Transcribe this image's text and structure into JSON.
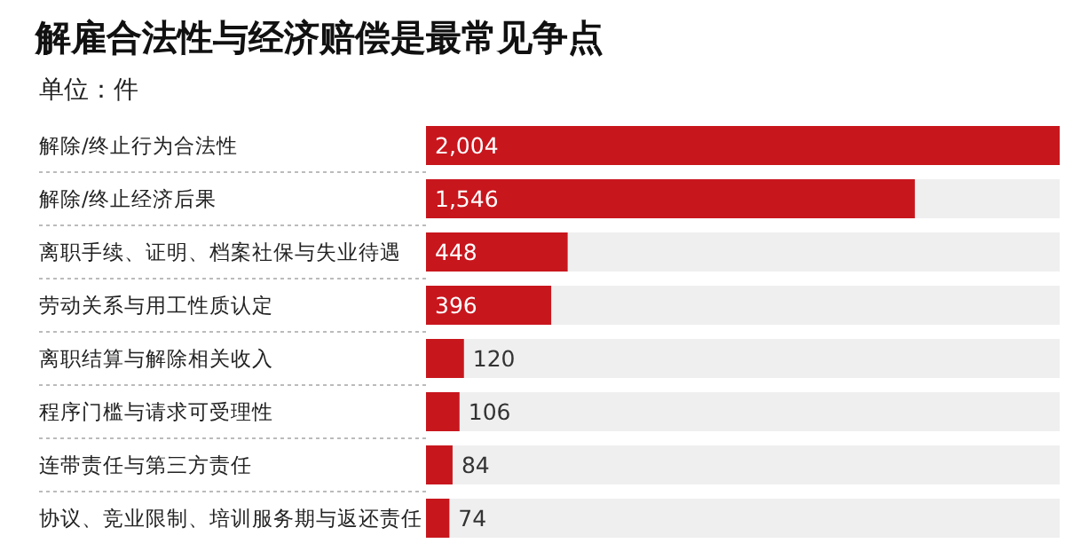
{
  "chart_data": {
    "type": "bar",
    "orientation": "horizontal",
    "title": "解雇合法性与经济赔偿是最常见争点",
    "subtitle": "单位：件",
    "categories": [
      "解除/终止行为合法性",
      "解除/终止经济后果",
      "离职手续、证明、档案社保与失业待遇",
      "劳动关系与用工性质认定",
      "离职结算与解除相关收入",
      "程序门槛与请求可受理性",
      "连带责任与第三方责任",
      "协议、竞业限制、培训服务期与返还责任"
    ],
    "values": [
      2004,
      1546,
      448,
      396,
      120,
      106,
      84,
      74
    ],
    "value_labels": [
      "2,004",
      "1,546",
      "448",
      "396",
      "120",
      "106",
      "84",
      "74"
    ],
    "color": "#c8161d"
  }
}
